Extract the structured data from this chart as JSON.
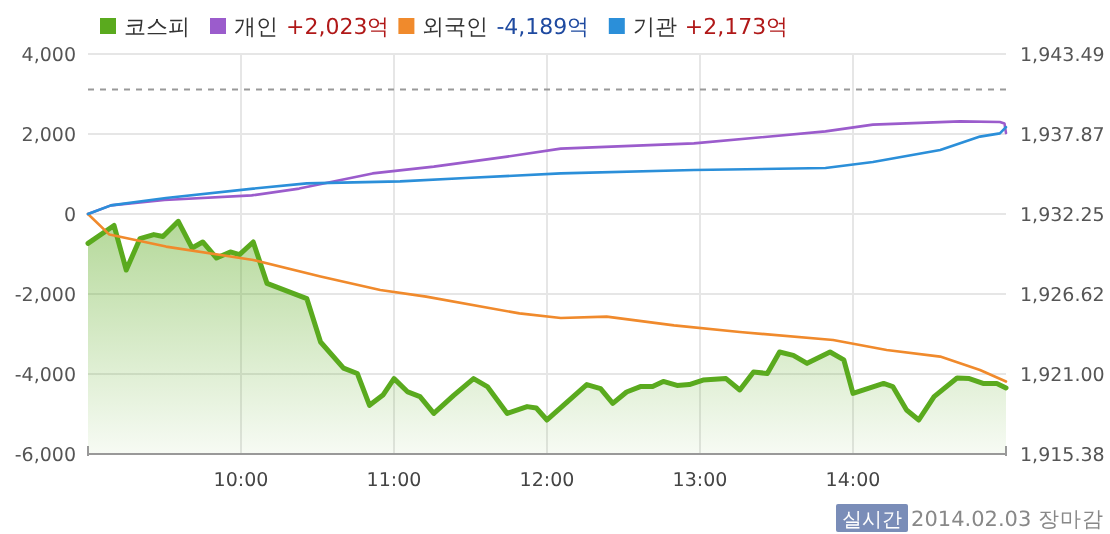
{
  "chart_data": {
    "type": "line",
    "legend": "top left",
    "grid": true,
    "xlim": [
      9,
      15
    ],
    "xticks": [
      {
        "value": 10,
        "label": "10:00"
      },
      {
        "value": 11,
        "label": "11:00"
      },
      {
        "value": 12,
        "label": "12:00"
      },
      {
        "value": 13,
        "label": "13:00"
      },
      {
        "value": 14,
        "label": "14:00"
      }
    ],
    "ylim": [
      -6000,
      4000
    ],
    "yticks": [
      {
        "value": -6000,
        "label": "-6,000"
      },
      {
        "value": -4000,
        "label": "-4,000"
      },
      {
        "value": -2000,
        "label": "-2,000"
      },
      0,
      {
        "value": 2000,
        "label": "2,000"
      },
      {
        "value": 4000,
        "label": "4,000"
      }
    ],
    "y2lim": [
      1915.38,
      1943.49
    ],
    "y2ticks": [
      {
        "value": 1915.38,
        "label": "1,915.38"
      },
      {
        "value": 1921.0,
        "label": "1,921.00"
      },
      {
        "value": 1926.62,
        "label": "1,926.62"
      },
      {
        "value": 1932.25,
        "label": "1,932.25"
      },
      {
        "value": 1937.87,
        "label": "1,937.87"
      },
      {
        "value": 1943.49,
        "label": "1,943.49"
      }
    ],
    "ref_lines": [
      {
        "axis": "y2",
        "value": 1941,
        "color": "#999999",
        "line_style": "dashed"
      }
    ],
    "series": [
      {
        "name": "코스피",
        "type": "area",
        "axis": "y2",
        "color": "#5aaa1e",
        "x": [
          9.0,
          9.17,
          9.25,
          9.34,
          9.43,
          9.49,
          9.59,
          9.68,
          9.75,
          9.84,
          9.93,
          9.99,
          10.08,
          10.17,
          10.43,
          10.52,
          10.67,
          10.76,
          10.84,
          10.93,
          11.0,
          11.09,
          11.17,
          11.26,
          11.39,
          11.52,
          11.61,
          11.74,
          11.87,
          11.93,
          12.0,
          12.26,
          12.35,
          12.43,
          12.52,
          12.61,
          12.69,
          12.76,
          12.85,
          12.93,
          13.02,
          13.17,
          13.26,
          13.35,
          13.44,
          13.52,
          13.61,
          13.7,
          13.85,
          13.94,
          14.0,
          14.2,
          14.26,
          14.35,
          14.43,
          14.53,
          14.68,
          14.76,
          14.85,
          14.94,
          15.0
        ],
        "values": [
          1930.18,
          1931.44,
          1928.31,
          1930.52,
          1930.8,
          1930.66,
          1931.73,
          1929.86,
          1930.28,
          1929.15,
          1929.58,
          1929.39,
          1930.28,
          1927.37,
          1926.3,
          1923.25,
          1921.42,
          1921.04,
          1918.8,
          1919.55,
          1920.68,
          1919.74,
          1919.41,
          1918.23,
          1919.5,
          1920.68,
          1920.12,
          1918.23,
          1918.71,
          1918.61,
          1917.77,
          1920.26,
          1919.98,
          1918.94,
          1919.74,
          1920.12,
          1920.12,
          1920.48,
          1920.2,
          1920.26,
          1920.58,
          1920.68,
          1919.88,
          1921.14,
          1921.04,
          1922.55,
          1922.31,
          1921.75,
          1922.55,
          1921.99,
          1919.64,
          1920.34,
          1920.12,
          1918.47,
          1917.77,
          1919.41,
          1920.72,
          1920.68,
          1920.34,
          1920.34,
          1920.02
        ]
      },
      {
        "name": "개인 +2,023억",
        "color": "#9b5ccc",
        "x": [
          9.0,
          9.15,
          9.5,
          10.07,
          10.38,
          10.86,
          11.26,
          11.74,
          12.09,
          12.96,
          13.82,
          14.13,
          14.7,
          14.96,
          14.99,
          15.0
        ],
        "values": [
          0,
          215,
          350,
          465,
          635,
          1015,
          1185,
          1435,
          1635,
          1765,
          2065,
          2235,
          2315,
          2300,
          2265,
          2023
        ]
      },
      {
        "name": "외국인 -4,189억",
        "color": "#f08a2c",
        "x": [
          9.0,
          9.14,
          9.51,
          10.08,
          10.52,
          10.91,
          11.21,
          11.82,
          12.09,
          12.39,
          12.83,
          13.26,
          13.87,
          14.22,
          14.57,
          14.83,
          15.0
        ],
        "values": [
          0,
          -515,
          -815,
          -1150,
          -1565,
          -1900,
          -2065,
          -2485,
          -2600,
          -2565,
          -2785,
          -2950,
          -3150,
          -3400,
          -3565,
          -3900,
          -4189
        ]
      },
      {
        "name": "기관 +2,173억",
        "color": "#2b8fd9",
        "x": [
          9.0,
          9.15,
          9.51,
          10.08,
          10.43,
          11.04,
          11.47,
          12.09,
          12.96,
          13.82,
          14.13,
          14.57,
          14.83,
          14.96,
          15.0
        ],
        "values": [
          0,
          215,
          400,
          635,
          765,
          815,
          900,
          1015,
          1100,
          1150,
          1300,
          1600,
          1935,
          2015,
          2173
        ]
      }
    ],
    "annotations": [
      "실시간",
      "2014.02.03 장마감"
    ]
  }
}
